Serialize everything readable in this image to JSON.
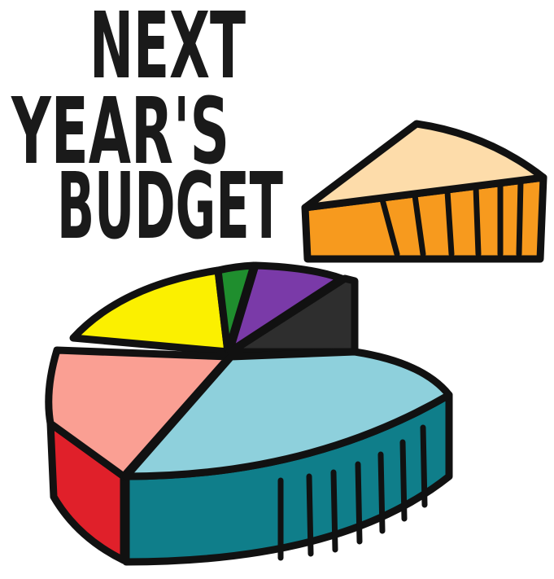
{
  "title": {
    "lines": [
      "NEXT",
      "YEAR'S",
      "BUDGET"
    ]
  }
}
